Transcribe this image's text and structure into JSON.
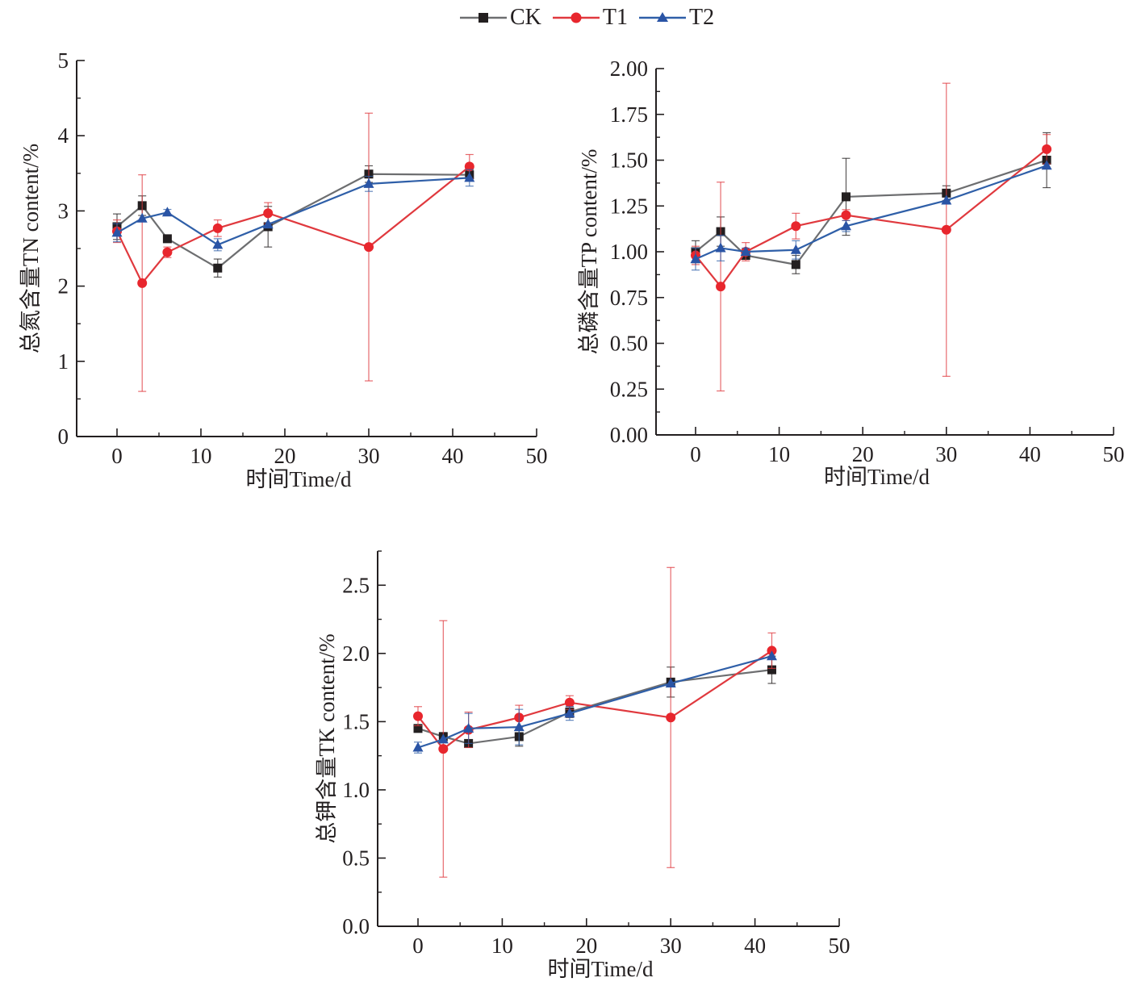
{
  "legend": {
    "items": [
      {
        "name": "CK",
        "color": "#6d6e70",
        "marker": "square",
        "marker_color": "#231f20"
      },
      {
        "name": "T1",
        "color": "#e0393e",
        "marker": "circle",
        "marker_color": "#e8262d"
      },
      {
        "name": "T2",
        "color": "#2f5fa8",
        "marker": "triangle",
        "marker_color": "#2a54a5"
      }
    ]
  },
  "chart_data": [
    {
      "type": "line",
      "title": "",
      "xlabel": "时间Time/d",
      "ylabel": "总氮含量TN content/%",
      "xlim": [
        -5,
        50
      ],
      "ylim": [
        0,
        5
      ],
      "xticks": [
        0,
        10,
        20,
        30,
        40,
        50
      ],
      "xtick_labels": [
        "0",
        "10",
        "20",
        "30",
        "40",
        "50"
      ],
      "yticks": [
        0,
        1,
        2,
        3,
        4,
        5
      ],
      "ytick_labels": [
        "0",
        "1",
        "2",
        "3",
        "4",
        "5"
      ],
      "grid": false,
      "x": [
        0,
        3,
        6,
        12,
        18,
        30,
        42
      ],
      "series": [
        {
          "name": "CK",
          "values": [
            2.79,
            3.07,
            2.63,
            2.24,
            2.79,
            3.49,
            3.48
          ],
          "errors": [
            0.17,
            0.13,
            0.0,
            0.12,
            0.27,
            0.11,
            0.07
          ]
        },
        {
          "name": "T1",
          "values": [
            2.73,
            2.04,
            2.45,
            2.77,
            2.97,
            2.52,
            3.59
          ],
          "errors": [
            0.15,
            1.44,
            0.07,
            0.11,
            0.14,
            1.78,
            0.16
          ]
        },
        {
          "name": "T2",
          "values": [
            2.71,
            2.9,
            2.98,
            2.55,
            2.82,
            3.36,
            3.44
          ],
          "errors": [
            0.12,
            0.0,
            0.04,
            0.08,
            0.0,
            0.1,
            0.11
          ]
        }
      ]
    },
    {
      "type": "line",
      "title": "",
      "xlabel": "时间Time/d",
      "ylabel": "总磷含量TP content/%",
      "xlim": [
        -5,
        50
      ],
      "ylim": [
        0,
        2
      ],
      "xticks": [
        0,
        10,
        20,
        30,
        40,
        50
      ],
      "xtick_labels": [
        "0",
        "10",
        "20",
        "30",
        "40",
        "50"
      ],
      "yticks": [
        0,
        0.25,
        0.5,
        0.75,
        1.0,
        1.25,
        1.5,
        1.75,
        2.0
      ],
      "ytick_labels": [
        "0.00",
        "0.25",
        "0.50",
        "0.75",
        "1.00",
        "1.25",
        "1.50",
        "1.75",
        "2.00"
      ],
      "grid": false,
      "x": [
        0,
        3,
        6,
        12,
        18,
        30,
        42
      ],
      "series": [
        {
          "name": "CK",
          "values": [
            1.0,
            1.11,
            0.98,
            0.93,
            1.3,
            1.32,
            1.5
          ],
          "errors": [
            0.06,
            0.08,
            0.02,
            0.05,
            0.21,
            0.04,
            0.15
          ]
        },
        {
          "name": "T1",
          "values": [
            0.98,
            0.81,
            1.0,
            1.14,
            1.2,
            1.12,
            1.56
          ],
          "errors": [
            0.05,
            0.57,
            0.05,
            0.07,
            0.03,
            0.8,
            0.08
          ]
        },
        {
          "name": "T2",
          "values": [
            0.96,
            1.02,
            1.0,
            1.01,
            1.14,
            1.28,
            1.47
          ],
          "errors": [
            0.06,
            0.07,
            0.02,
            0.05,
            0.03,
            0.0,
            0.0
          ]
        }
      ]
    },
    {
      "type": "line",
      "title": "",
      "xlabel": "时间Time/d",
      "ylabel": "总钾含量TK content/%",
      "xlim": [
        -5,
        50
      ],
      "ylim": [
        0,
        2.75
      ],
      "xticks": [
        0,
        10,
        20,
        30,
        40,
        50
      ],
      "xtick_labels": [
        "0",
        "10",
        "20",
        "30",
        "40",
        "50"
      ],
      "yticks": [
        0,
        0.5,
        1.0,
        1.5,
        2.0,
        2.5
      ],
      "ytick_labels": [
        "0.0",
        "0.5",
        "1.0",
        "1.5",
        "2.0",
        "2.5"
      ],
      "grid": false,
      "x": [
        0,
        3,
        6,
        12,
        18,
        30,
        42
      ],
      "series": [
        {
          "name": "CK",
          "values": [
            1.45,
            1.39,
            1.34,
            1.39,
            1.57,
            1.79,
            1.88
          ],
          "errors": [
            0.0,
            0.03,
            0.0,
            0.07,
            0.04,
            0.11,
            0.1
          ]
        },
        {
          "name": "T1",
          "values": [
            1.54,
            1.3,
            1.44,
            1.53,
            1.64,
            1.53,
            2.02
          ],
          "errors": [
            0.07,
            0.94,
            0.13,
            0.09,
            0.05,
            1.1,
            0.13
          ]
        },
        {
          "name": "T2",
          "values": [
            1.31,
            1.37,
            1.45,
            1.46,
            1.56,
            1.78,
            1.98
          ],
          "errors": [
            0.04,
            0.0,
            0.11,
            0.13,
            0.05,
            0.0,
            0.0
          ]
        }
      ]
    }
  ]
}
